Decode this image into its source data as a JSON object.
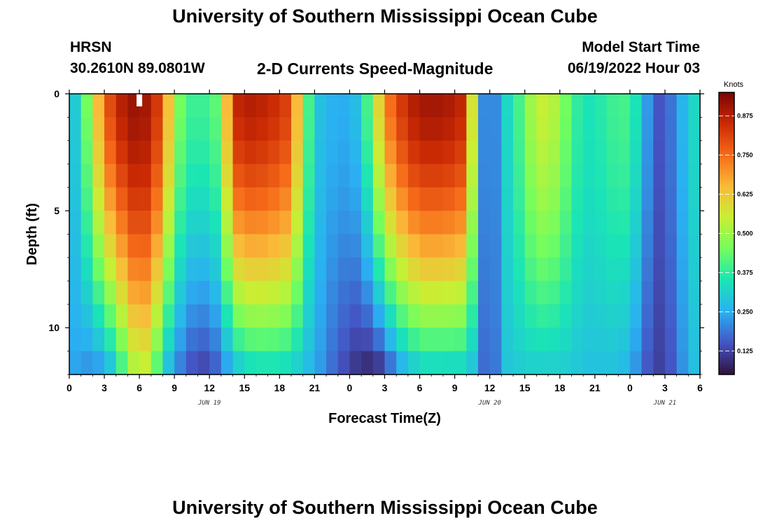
{
  "page": {
    "title": "University of Southern Mississippi Ocean Cube",
    "footer_title": "University of Southern Mississippi Ocean Cube",
    "station": "HRSN",
    "coords": "30.2610N  89.0801W",
    "subtitle": "2-D Currents Speed-Magnitude",
    "model_start_label": "Model Start Time",
    "model_start_value": "06/19/2022 Hour 03"
  },
  "chart_data": {
    "type": "heatmap",
    "title": "2-D Currents Speed-Magnitude",
    "xlabel": "Forecast Time(Z)",
    "ylabel": "Depth (ft)",
    "x_tick_labels": [
      "0",
      "3",
      "6",
      "9",
      "12",
      "15",
      "18",
      "21",
      "0",
      "3",
      "6",
      "9",
      "12",
      "15",
      "18",
      "21",
      "0",
      "3",
      "6"
    ],
    "x_range_hours": [
      0,
      54
    ],
    "date_labels": [
      {
        "label": "JUN 19",
        "hour": 12
      },
      {
        "label": "JUN 20",
        "hour": 36
      },
      {
        "label": "JUN 21",
        "hour": 51
      }
    ],
    "y_tick_labels": [
      "0",
      "5",
      "10"
    ],
    "y_tick_values": [
      0,
      5,
      10
    ],
    "y_range_ft": [
      0,
      12
    ],
    "colorbar": {
      "title": "Knots",
      "ticks": [
        "0.875",
        "0.750",
        "0.625",
        "0.500",
        "0.375",
        "0.250",
        "0.125"
      ],
      "tick_values": [
        0.875,
        0.75,
        0.625,
        0.5,
        0.375,
        0.25,
        0.125
      ],
      "range": [
        0.05,
        0.95
      ],
      "colors": [
        "#30123b",
        "#4454c4",
        "#2ab0f2",
        "#1ae4b6",
        "#72fe5e",
        "#c8ef34",
        "#faba39",
        "#f66b19",
        "#ca2a04",
        "#7a0403"
      ]
    },
    "speed_field": {
      "description": "approximate current speed (knots) vs forecast hour at surface and at 12 ft depth",
      "hours": [
        0,
        1,
        2,
        3,
        4,
        5,
        6,
        7,
        8,
        9,
        10,
        11,
        12,
        13,
        14,
        15,
        16,
        17,
        18,
        19,
        20,
        21,
        22,
        23,
        24,
        25,
        26,
        27,
        28,
        29,
        30,
        31,
        32,
        33,
        34,
        35,
        36,
        37,
        38,
        39,
        40,
        41,
        42,
        43,
        44,
        45,
        46,
        47,
        48,
        49,
        50,
        51,
        52,
        53,
        54
      ],
      "surface": [
        0.25,
        0.35,
        0.55,
        0.75,
        0.85,
        0.9,
        0.92,
        0.88,
        0.78,
        0.5,
        0.4,
        0.38,
        0.4,
        0.45,
        0.85,
        0.88,
        0.88,
        0.86,
        0.84,
        0.8,
        0.5,
        0.3,
        0.26,
        0.25,
        0.25,
        0.3,
        0.5,
        0.7,
        0.8,
        0.86,
        0.9,
        0.9,
        0.9,
        0.88,
        0.85,
        0.3,
        0.12,
        0.3,
        0.35,
        0.45,
        0.55,
        0.55,
        0.5,
        0.4,
        0.35,
        0.35,
        0.38,
        0.4,
        0.4,
        0.3,
        0.15,
        0.15,
        0.22,
        0.3,
        0.35
      ],
      "bottom_12ft": [
        0.25,
        0.22,
        0.2,
        0.22,
        0.3,
        0.45,
        0.55,
        0.5,
        0.3,
        0.22,
        0.15,
        0.12,
        0.12,
        0.18,
        0.25,
        0.3,
        0.32,
        0.32,
        0.32,
        0.3,
        0.28,
        0.25,
        0.2,
        0.15,
        0.12,
        0.08,
        0.07,
        0.1,
        0.2,
        0.25,
        0.3,
        0.3,
        0.3,
        0.3,
        0.3,
        0.25,
        0.1,
        0.28,
        0.3,
        0.3,
        0.3,
        0.3,
        0.3,
        0.3,
        0.28,
        0.28,
        0.28,
        0.28,
        0.25,
        0.18,
        0.12,
        0.12,
        0.18,
        0.25,
        0.3
      ]
    },
    "marker": {
      "label": "model start marker",
      "hour": 6
    }
  }
}
